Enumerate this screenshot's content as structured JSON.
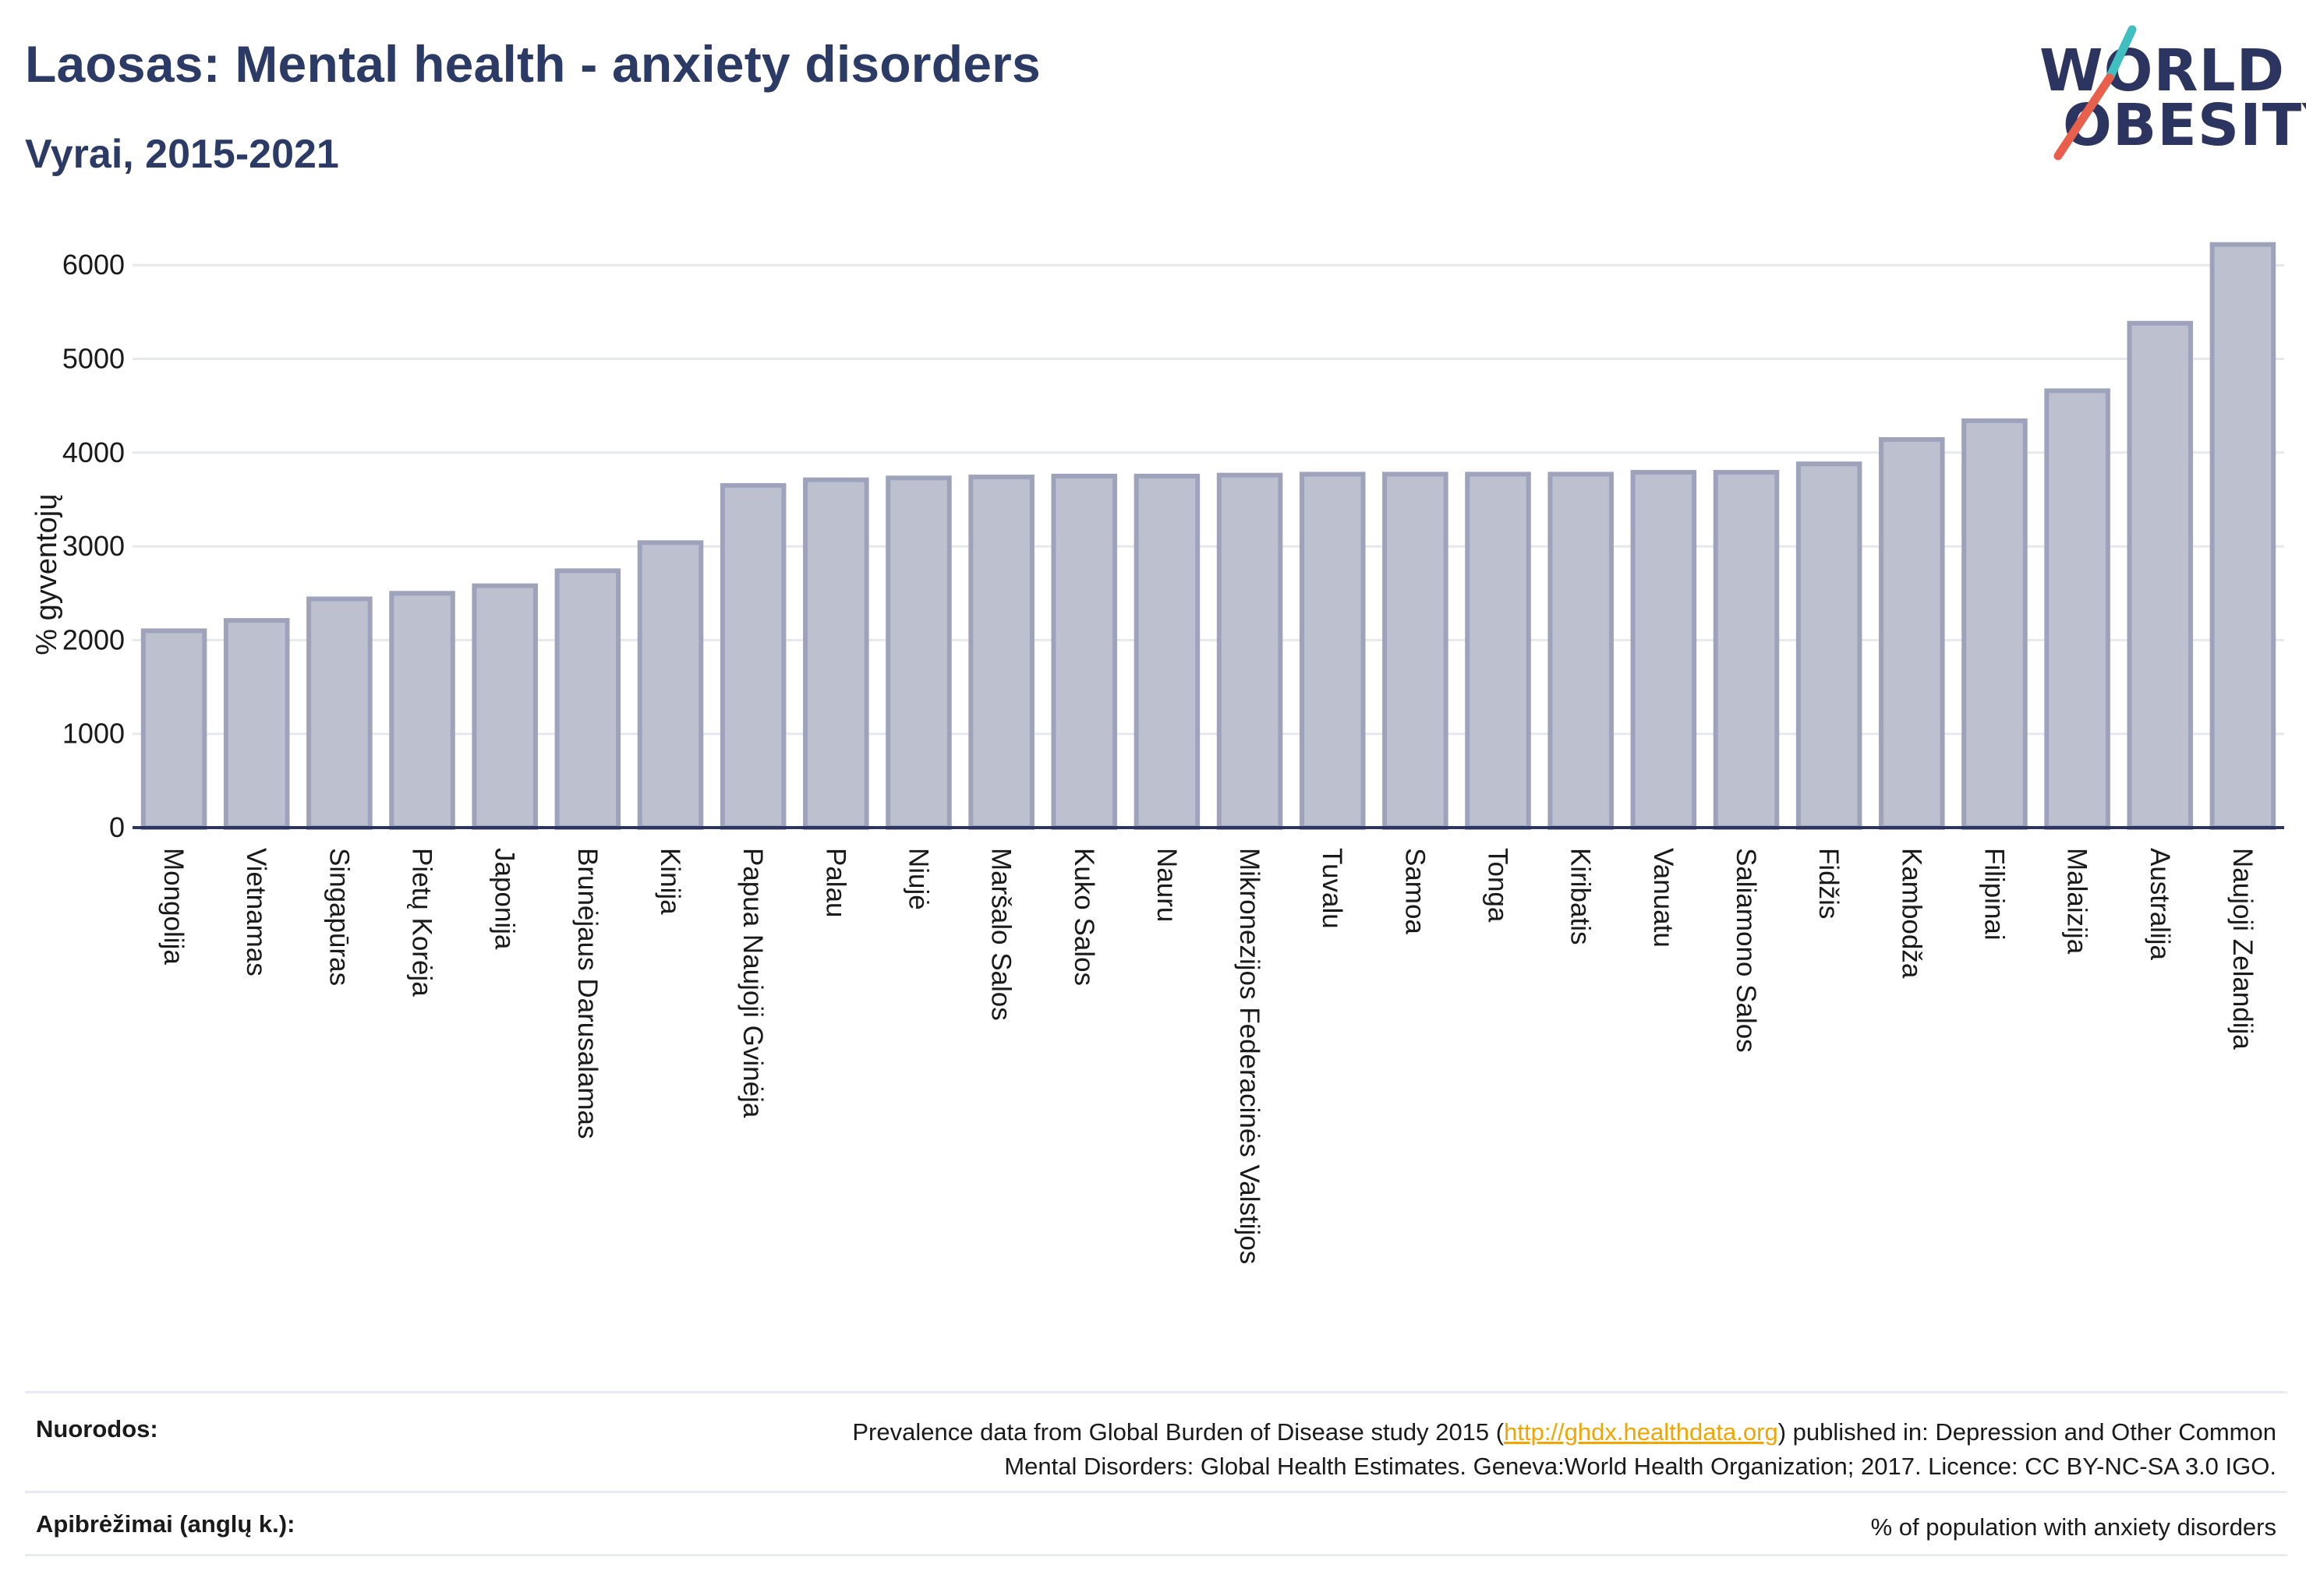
{
  "header": {
    "title": "Laosas: Mental health - anxiety disorders",
    "subtitle": "Vyrai, 2015-2021"
  },
  "logo": {
    "line1": "WORLD",
    "line2": "OBESITY"
  },
  "chart_data": {
    "type": "bar",
    "ylabel": "% gyventojų",
    "ylim": [
      0,
      6400
    ],
    "yticks": [
      0,
      1000,
      2000,
      3000,
      4000,
      5000,
      6000
    ],
    "grid": true,
    "categories": [
      "Mongolija",
      "Vietnamas",
      "Singapūras",
      "Pietų Korėja",
      "Japonija",
      "Brunėjaus Darusalamas",
      "Kinija",
      "Papua Naujoji Gvinėja",
      "Palau",
      "Niujė",
      "Maršalo Salos",
      "Kuko Salos",
      "Nauru",
      "Mikronezijos Federacinės Valstijos",
      "Tuvalu",
      "Samoa",
      "Tonga",
      "Kiribatis",
      "Vanuatu",
      "Saliamono Salos",
      "Fidžis",
      "Kambodža",
      "Filipinai",
      "Malaizija",
      "Australija",
      "Naujoji Zelandija"
    ],
    "values": [
      2100,
      2210,
      2440,
      2500,
      2580,
      2740,
      3040,
      3650,
      3710,
      3730,
      3740,
      3750,
      3750,
      3760,
      3770,
      3770,
      3770,
      3770,
      3790,
      3790,
      3880,
      4140,
      4340,
      4660,
      5380,
      6220
    ],
    "colors": {
      "bar_fill": "#bcc0cf",
      "bar_stroke": "#9ea3bb",
      "axis": "#2c3560",
      "grid": "#e6e8ee"
    }
  },
  "footer": {
    "references_label": "Nuorodos:",
    "references_text_before": "Prevalence data from Global Burden of Disease study 2015 (",
    "references_link": "http://ghdx.healthdata.org",
    "references_text_after": ") published in: Depression and Other Common",
    "references_line2": "Mental Disorders: Global Health Estimates. Geneva:World Health Organization; 2017. Licence: CC BY-NC-SA 3.0 IGO.",
    "definitions_label": "Apibrėžimai (anglų k.):",
    "definitions_text": "% of population with anxiety disorders"
  }
}
